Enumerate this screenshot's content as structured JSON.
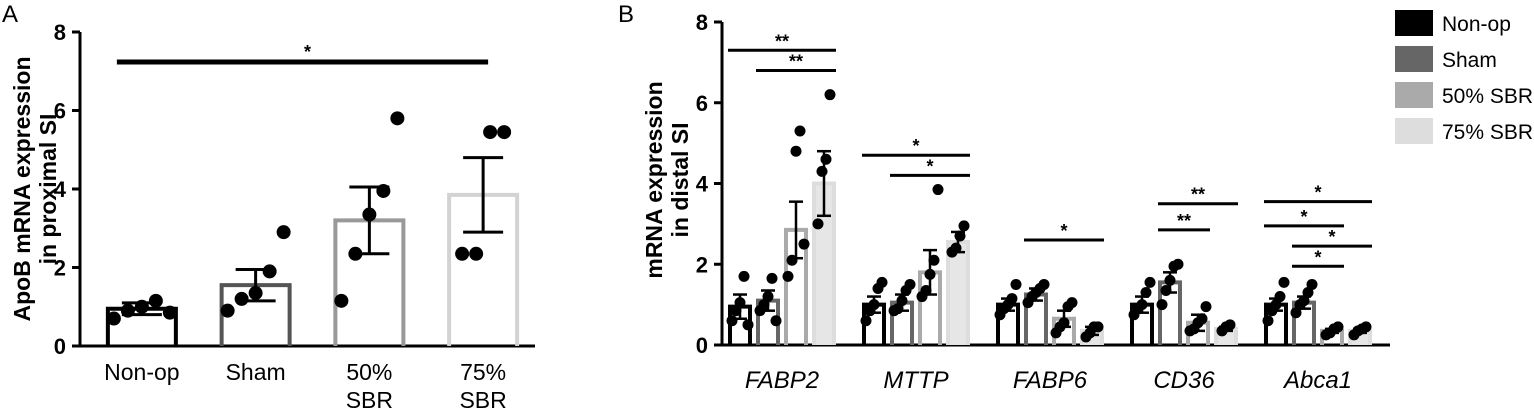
{
  "chart_data": [
    {
      "panel": "A",
      "type": "bar",
      "ylabel_lines": [
        "ApoB mRNA expression",
        "in proximal SI"
      ],
      "ylim": [
        0,
        8
      ],
      "yticks": [
        "0",
        "2",
        "4",
        "6",
        "8"
      ],
      "categories": [
        {
          "label_lines": [
            "Non-op"
          ],
          "mean": 0.95,
          "sem": 0.15,
          "color": "#000000",
          "points": [
            0.7,
            0.9,
            1.0,
            1.15,
            0.85
          ]
        },
        {
          "label_lines": [
            "Sham"
          ],
          "mean": 1.55,
          "sem": 0.4,
          "color": "#555555",
          "points": [
            0.9,
            1.2,
            1.35,
            1.9,
            2.9
          ]
        },
        {
          "label_lines": [
            "50%",
            "SBR"
          ],
          "mean": 3.2,
          "sem": 0.85,
          "color": "#999999",
          "points": [
            1.15,
            2.35,
            3.35,
            3.95,
            5.8
          ]
        },
        {
          "label_lines": [
            "75%",
            "SBR"
          ],
          "mean": 3.85,
          "sem": 0.95,
          "color": "#d3d3d3",
          "points": [
            2.35,
            2.35,
            5.45,
            5.45
          ]
        }
      ],
      "significance": [
        {
          "from": 0,
          "to": 3,
          "label": "*"
        }
      ]
    },
    {
      "panel": "B",
      "type": "bar",
      "ylabel_lines": [
        "mRNA expression",
        "in distal SI"
      ],
      "ylim": [
        0,
        8
      ],
      "yticks": [
        "0",
        "2",
        "4",
        "6",
        "8"
      ],
      "series": [
        {
          "name": "Non-op",
          "color": "#000000"
        },
        {
          "name": "Sham",
          "color": "#666666"
        },
        {
          "name": "50% SBR",
          "color": "#aaaaaa"
        },
        {
          "name": "75% SBR",
          "color": "#dddddd"
        }
      ],
      "groups": [
        {
          "label": "FABP2",
          "means": [
            0.95,
            1.1,
            2.85,
            4.0
          ],
          "sems": [
            0.3,
            0.25,
            0.7,
            0.8
          ],
          "points": [
            [
              0.6,
              0.85,
              1.05,
              1.7,
              0.5
            ],
            [
              0.85,
              1.0,
              1.2,
              1.65,
              0.6
            ],
            [
              1.7,
              2.1,
              4.8,
              5.3,
              2.5
            ],
            [
              3.0,
              4.3,
              4.6,
              6.2
            ]
          ],
          "significance": [
            {
              "from": 0,
              "to": 3,
              "label": "**",
              "y": 7.3
            },
            {
              "from": 1,
              "to": 3,
              "label": "**",
              "y": 6.8
            }
          ]
        },
        {
          "label": "MTTP",
          "means": [
            1.0,
            1.05,
            1.8,
            2.55
          ],
          "sems": [
            0.2,
            0.2,
            0.55,
            0.25
          ],
          "points": [
            [
              0.6,
              0.85,
              1.0,
              1.4,
              1.55
            ],
            [
              0.85,
              0.9,
              1.1,
              1.35,
              1.5
            ],
            [
              1.2,
              1.35,
              1.75,
              2.1,
              3.85
            ],
            [
              2.3,
              2.4,
              2.7,
              2.95
            ]
          ],
          "significance": [
            {
              "from": 0,
              "to": 3,
              "label": "*",
              "y": 4.7
            },
            {
              "from": 1,
              "to": 3,
              "label": "*",
              "y": 4.2
            }
          ]
        },
        {
          "label": "FABP6",
          "means": [
            1.0,
            1.25,
            0.65,
            0.35
          ],
          "sems": [
            0.15,
            0.15,
            0.2,
            0.1
          ],
          "points": [
            [
              0.75,
              0.9,
              1.0,
              1.15,
              1.5
            ],
            [
              1.05,
              1.2,
              1.3,
              1.4,
              1.5
            ],
            [
              0.3,
              0.45,
              0.55,
              0.95,
              1.05
            ],
            [
              0.2,
              0.3,
              0.45,
              0.45
            ]
          ],
          "significance": [
            {
              "from": 1,
              "to": 3,
              "label": "*",
              "y": 2.6
            }
          ]
        },
        {
          "label": "CD36",
          "means": [
            1.0,
            1.55,
            0.55,
            0.4
          ],
          "sems": [
            0.2,
            0.25,
            0.2,
            0.05
          ],
          "points": [
            [
              0.75,
              0.9,
              1.0,
              1.3,
              1.55
            ],
            [
              1.0,
              1.35,
              1.6,
              1.95,
              2.0
            ],
            [
              0.35,
              0.4,
              0.55,
              0.65,
              0.95
            ],
            [
              0.35,
              0.45,
              0.5
            ]
          ],
          "significance": [
            {
              "from": 1,
              "to": 3,
              "label": "**",
              "y": 3.5
            },
            {
              "from": 1,
              "to": 2,
              "label": "**",
              "y": 2.85
            }
          ]
        },
        {
          "label": "Abca1",
          "means": [
            1.0,
            1.05,
            0.35,
            0.35
          ],
          "sems": [
            0.15,
            0.15,
            0.05,
            0.05
          ],
          "points": [
            [
              0.6,
              0.85,
              1.0,
              1.2,
              1.55
            ],
            [
              0.8,
              1.0,
              1.1,
              1.3,
              1.5
            ],
            [
              0.25,
              0.3,
              0.4,
              0.45
            ],
            [
              0.25,
              0.35,
              0.4,
              0.45
            ]
          ],
          "significance": [
            {
              "from": 0,
              "to": 3,
              "label": "*",
              "y": 3.55
            },
            {
              "from": 0,
              "to": 2,
              "label": "*",
              "y": 2.95
            },
            {
              "from": 1,
              "to": 3,
              "label": "*",
              "y": 2.45
            },
            {
              "from": 1,
              "to": 2,
              "label": "*",
              "y": 1.95
            }
          ]
        }
      ]
    }
  ]
}
